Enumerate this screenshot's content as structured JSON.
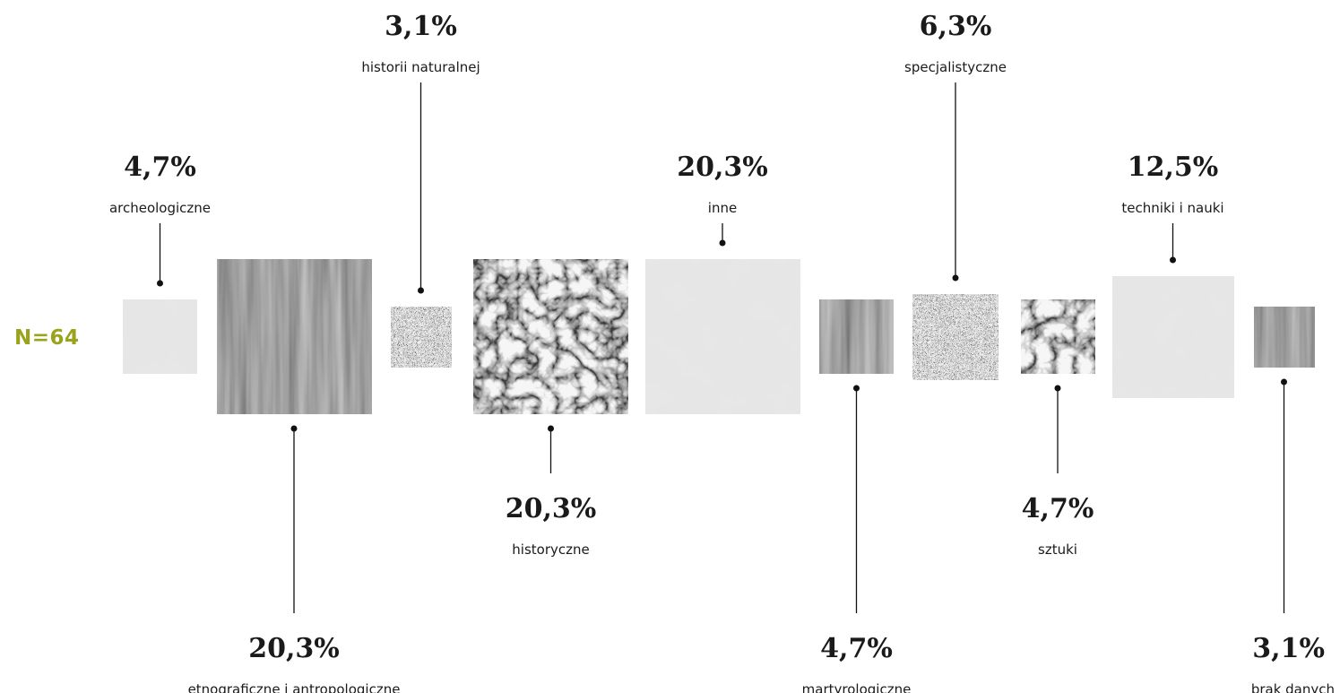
{
  "sample": {
    "label": "N=64"
  },
  "colors": {
    "accent": "#9aa31b",
    "text": "#1a1a1a",
    "line": "#111111"
  },
  "chart_data": {
    "type": "proportional-square-chart",
    "title": "",
    "unit": "%",
    "n": 64,
    "categories": [
      {
        "name": "archeologiczne",
        "value_label": "4,7%",
        "value": 4.7,
        "texture": "light-paper"
      },
      {
        "name": "etnograficzne i antropologiczne",
        "value_label": "20,3%",
        "value": 20.3,
        "texture": "wood-grain"
      },
      {
        "name": "historii naturalnej",
        "value_label": "3,1%",
        "value": 3.1,
        "texture": "speckle"
      },
      {
        "name": "historyczne",
        "value_label": "20,3%",
        "value": 20.3,
        "texture": "cellular-mesh"
      },
      {
        "name": "inne",
        "value_label": "20,3%",
        "value": 20.3,
        "texture": "light-paper"
      },
      {
        "name": "martyrologiczne",
        "value_label": "4,7%",
        "value": 4.7,
        "texture": "wood-grain"
      },
      {
        "name": "specjalistyczne",
        "value_label": "6,3%",
        "value": 6.3,
        "texture": "speckle"
      },
      {
        "name": "sztuki",
        "value_label": "4,7%",
        "value": 4.7,
        "texture": "cellular-mesh"
      },
      {
        "name": "techniki i nauki",
        "value_label": "12,5%",
        "value": 12.5,
        "texture": "light-paper"
      },
      {
        "name": "brak danych",
        "value_label": "3,1%",
        "value": 3.1,
        "texture": "wood-grain"
      }
    ]
  }
}
